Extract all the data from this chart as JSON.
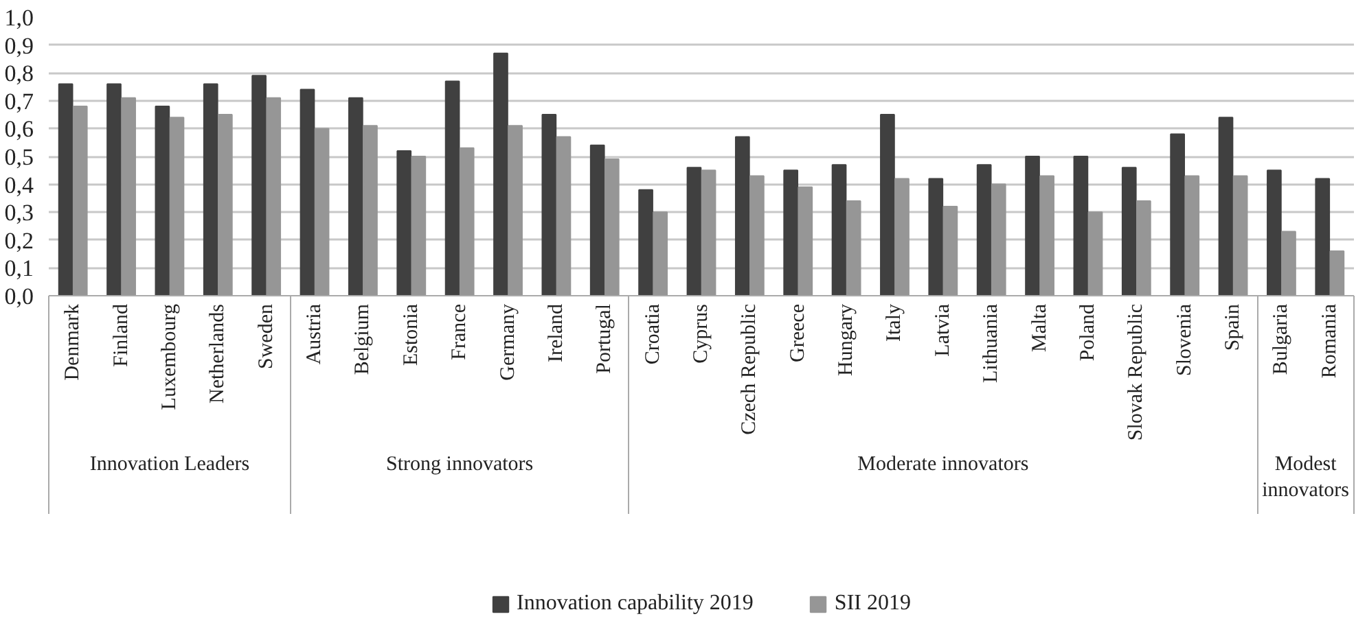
{
  "chart_data": {
    "type": "bar",
    "categories": [
      "Denmark",
      "Finland",
      "Luxembourg",
      "Netherlands",
      "Sweden",
      "Austria",
      "Belgium",
      "Estonia",
      "France",
      "Germany",
      "Ireland",
      "Portugal",
      "Croatia",
      "Cyprus",
      "Czech Republic",
      "Greece",
      "Hungary",
      "Italy",
      "Latvia",
      "Lithuania",
      "Malta",
      "Poland",
      "Slovak Republic",
      "Slovenia",
      "Spain",
      "Bulgaria",
      "Romania"
    ],
    "series": [
      {
        "name": "Innovation capability 2019",
        "color": "#404040",
        "values": [
          0.76,
          0.76,
          0.68,
          0.76,
          0.79,
          0.74,
          0.71,
          0.52,
          0.77,
          0.87,
          0.65,
          0.54,
          0.38,
          0.46,
          0.57,
          0.45,
          0.47,
          0.65,
          0.42,
          0.47,
          0.5,
          0.5,
          0.46,
          0.58,
          0.64,
          0.45,
          0.42
        ]
      },
      {
        "name": "SII 2019",
        "color": "#969696",
        "values": [
          0.68,
          0.71,
          0.64,
          0.65,
          0.71,
          0.6,
          0.61,
          0.5,
          0.53,
          0.61,
          0.57,
          0.49,
          0.3,
          0.45,
          0.43,
          0.39,
          0.34,
          0.42,
          0.32,
          0.4,
          0.43,
          0.3,
          0.34,
          0.43,
          0.43,
          0.23,
          0.16
        ]
      }
    ],
    "ylim": [
      0,
      1.0
    ],
    "yticks": [
      {
        "value": 0,
        "label": "0,0"
      },
      {
        "value": 0.1,
        "label": "0,1"
      },
      {
        "value": 0.2,
        "label": "0,2"
      },
      {
        "value": 0.3,
        "label": "0,3"
      },
      {
        "value": 0.4,
        "label": "0,4"
      },
      {
        "value": 0.5,
        "label": "0,5"
      },
      {
        "value": 0.6,
        "label": "0,6"
      },
      {
        "value": 0.7,
        "label": "0,7"
      },
      {
        "value": 0.8,
        "label": "0,8"
      },
      {
        "value": 0.9,
        "label": "0,9"
      },
      {
        "value": 1.0,
        "label": "1,0"
      }
    ],
    "grid": "y",
    "legend": "bottom",
    "annotations": [
      "Innovation Leaders",
      "Strong innovators",
      "Moderate innovators",
      "Modest innovators"
    ]
  }
}
